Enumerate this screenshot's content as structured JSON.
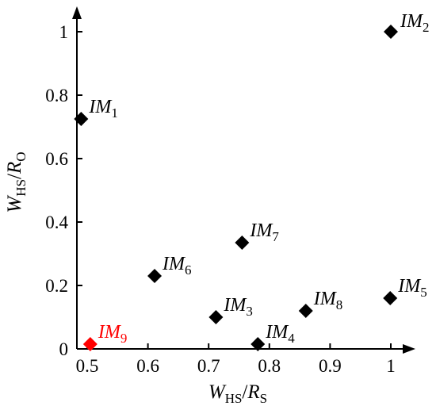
{
  "chart_data": {
    "type": "scatter",
    "xlabel": {
      "main": "W",
      "sub1": "HS",
      "slash": "/",
      "r": "R",
      "sub2": "S"
    },
    "ylabel": {
      "main": "W",
      "sub1": "HS",
      "slash": "/",
      "r": "R",
      "sub2": "O"
    },
    "x_ticks": [
      "0.5",
      "0.6",
      "0.7",
      "0.8",
      "0.9",
      "1"
    ],
    "y_ticks": [
      "0",
      "0.2",
      "0.4",
      "0.6",
      "0.8",
      "1"
    ],
    "xlim": [
      0.485,
      1.01
    ],
    "ylim": [
      0,
      1.02
    ],
    "grid": false,
    "points": [
      {
        "label": "IM",
        "sub": "1",
        "x": 0.49,
        "y": 0.725,
        "color": "#000000"
      },
      {
        "label": "IM",
        "sub": "2",
        "x": 1.0,
        "y": 1.0,
        "color": "#000000"
      },
      {
        "label": "IM",
        "sub": "3",
        "x": 0.712,
        "y": 0.1,
        "color": "#000000"
      },
      {
        "label": "IM",
        "sub": "4",
        "x": 0.781,
        "y": 0.015,
        "color": "#000000"
      },
      {
        "label": "IM",
        "sub": "5",
        "x": 0.999,
        "y": 0.16,
        "color": "#000000"
      },
      {
        "label": "IM",
        "sub": "6",
        "x": 0.611,
        "y": 0.23,
        "color": "#000000"
      },
      {
        "label": "IM",
        "sub": "7",
        "x": 0.755,
        "y": 0.335,
        "color": "#000000"
      },
      {
        "label": "IM",
        "sub": "8",
        "x": 0.86,
        "y": 0.12,
        "color": "#000000"
      },
      {
        "label": "IM",
        "sub": "9",
        "x": 0.505,
        "y": 0.015,
        "color": "#ff0000"
      }
    ]
  }
}
